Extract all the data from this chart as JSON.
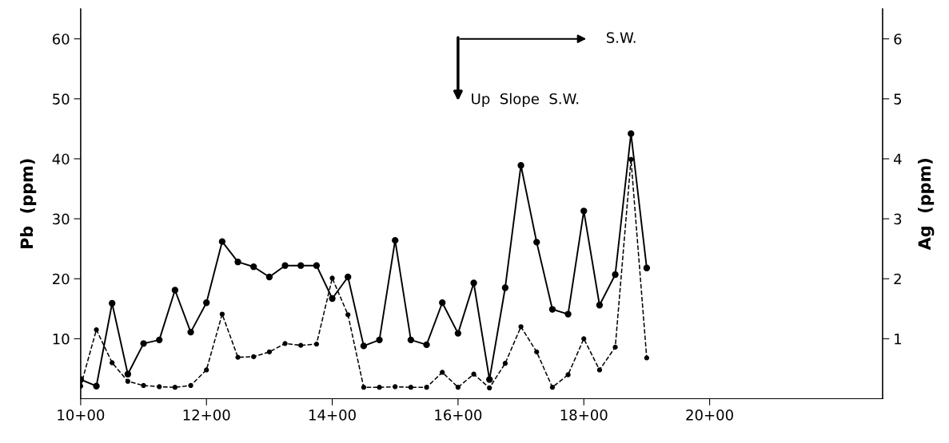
{
  "chart_data": {
    "type": "line",
    "ylabel": "Pb  (ppm)",
    "y2label": "Ag  (ppm)",
    "annotations": [
      "S.W.",
      "Up  Slope  S.W."
    ],
    "categories": [
      "10+00",
      null,
      null,
      null,
      null,
      null,
      null,
      null,
      "12+00",
      null,
      null,
      null,
      null,
      null,
      null,
      null,
      "14+00",
      null,
      null,
      null,
      null,
      null,
      null,
      null,
      "16+00",
      null,
      null,
      null,
      null,
      null,
      null,
      null,
      "18+00",
      null,
      null,
      null,
      null,
      null,
      null,
      null,
      "20+00",
      null,
      null,
      null,
      null,
      null,
      null,
      null,
      null,
      null,
      null,
      null
    ],
    "series": [
      {
        "color": "#000000",
        "line_style": "solid",
        "values": [
          3.2,
          2.1,
          15.9,
          4.1,
          9.2,
          9.8,
          18.1,
          11.1,
          16.0,
          26.2,
          22.8,
          22.0,
          20.3,
          22.2,
          22.2,
          22.2,
          16.7,
          20.3,
          8.8,
          9.8,
          26.4,
          9.8,
          9.0,
          16.0,
          10.9,
          19.3,
          3.2,
          18.5,
          38.9,
          26.1,
          14.9,
          14.1,
          31.3,
          15.6,
          20.7,
          44.2,
          21.8,
          null,
          null,
          null,
          null,
          null,
          null,
          null,
          null,
          null,
          null,
          null,
          null,
          null,
          null,
          null
        ]
      },
      {
        "color": "#000000",
        "line_style": "dashed",
        "axis": "y2",
        "values": [
          0.21,
          1.15,
          0.6,
          0.29,
          0.22,
          0.2,
          0.19,
          0.22,
          0.48,
          1.41,
          0.69,
          0.7,
          0.78,
          0.92,
          0.89,
          0.91,
          2.01,
          1.4,
          0.19,
          0.19,
          0.2,
          0.19,
          0.19,
          0.44,
          0.19,
          0.41,
          0.18,
          0.59,
          1.2,
          0.78,
          0.19,
          0.4,
          1.0,
          0.48,
          0.86,
          3.99,
          0.68,
          null,
          null,
          null,
          null,
          null,
          null,
          null,
          null,
          null,
          null,
          null,
          null,
          null,
          null,
          null
        ]
      }
    ],
    "marker": "circle",
    "grid": false,
    "ylim": [
      0,
      65
    ],
    "yticks": [
      10,
      20,
      30,
      40,
      50,
      60
    ],
    "y2lim": [
      0,
      6.5
    ],
    "y2ticks": [
      1,
      2,
      3,
      4,
      5,
      6
    ]
  }
}
